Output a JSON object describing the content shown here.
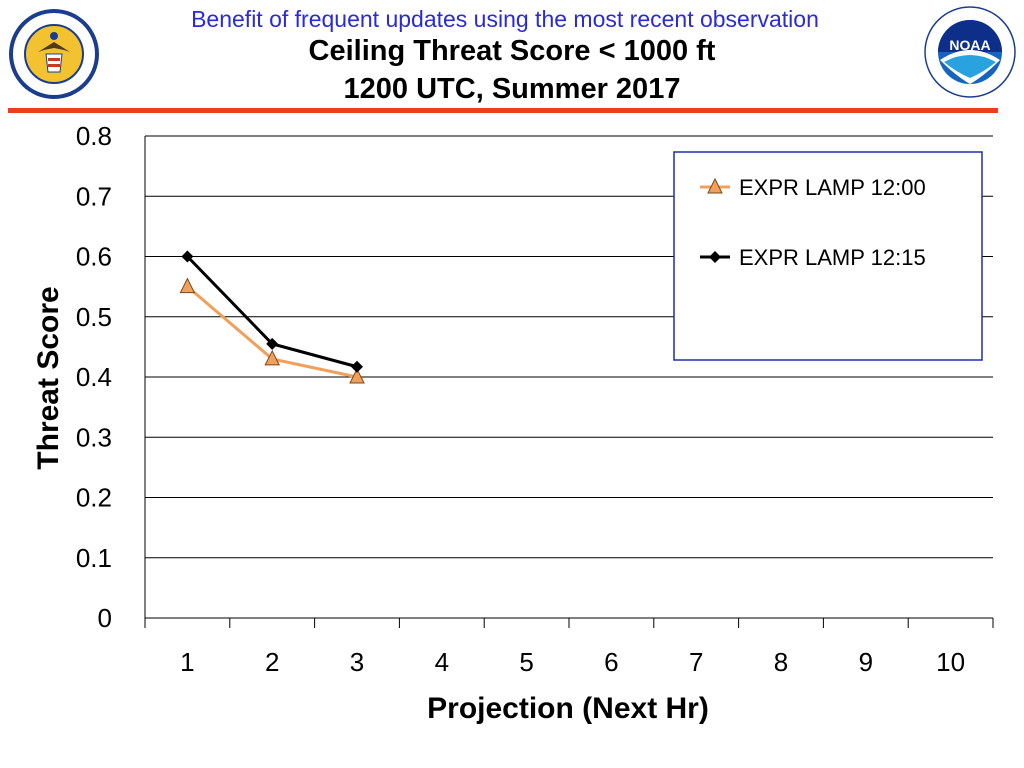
{
  "header": {
    "banner": "Benefit of frequent updates using the most recent observation",
    "title_line1": "Ceiling Threat Score < 1000 ft",
    "title_line2": "1200 UTC, Summer 2017"
  },
  "logos": {
    "left": "department-of-commerce-seal",
    "right": "noaa-logo",
    "left_text": "DEPARTMENT OF COMMERCE UNITED STATES OF AMERICA",
    "right_text": "NATIONAL OCEANIC AND ATMOSPHERIC ADMINISTRATION U.S. DEPARTMENT OF COMMERCE",
    "right_wordmark": "NOAA"
  },
  "colors": {
    "banner": "#2a2ad8",
    "rule": "#e8401c",
    "series_1200": "#f0a05a",
    "series_1200_marker": "#f0a05a",
    "series_1215": "#000000",
    "legend_border": "#1f2ea8",
    "grid": "#000000"
  },
  "chart_data": {
    "type": "line",
    "title": "Ceiling Threat Score < 1000 ft",
    "xlabel": "Projection (Next Hr)",
    "ylabel": "Threat Score",
    "x": [
      1,
      2,
      3,
      4,
      5,
      6,
      7,
      8,
      9,
      10
    ],
    "ylim": [
      0,
      0.8
    ],
    "yticks": [
      "0",
      "0.1",
      "0.2",
      "0.3",
      "0.4",
      "0.5",
      "0.6",
      "0.7",
      "0.8"
    ],
    "grid": true,
    "legend_position": "top-right",
    "series": [
      {
        "name": "EXPR LAMP 12:00",
        "marker": "triangle",
        "x": [
          1,
          2,
          3
        ],
        "values": [
          0.55,
          0.43,
          0.4
        ]
      },
      {
        "name": "EXPR LAMP 12:15",
        "marker": "diamond",
        "x": [
          1,
          2,
          3
        ],
        "values": [
          0.6,
          0.455,
          0.417
        ]
      }
    ]
  }
}
